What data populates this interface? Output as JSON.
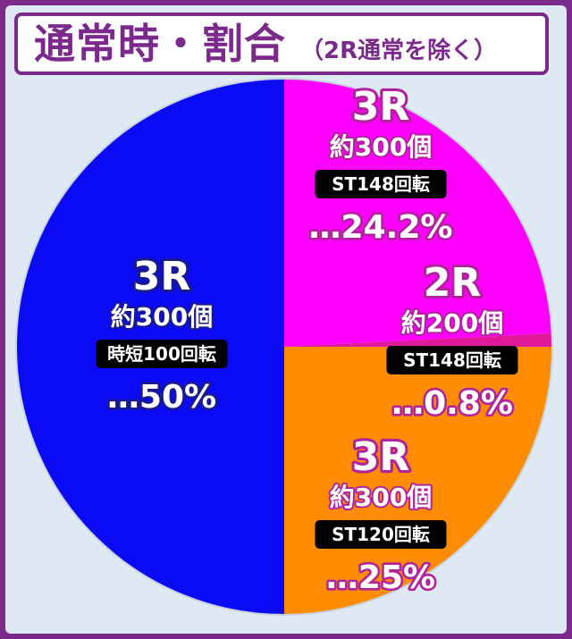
{
  "colors": {
    "frame": "#7b2a8c",
    "background": "#dfe9f3",
    "title_text": "#7b2a8c",
    "label_fill": "#ffffff",
    "pill_bg": "#000000"
  },
  "title": {
    "main": "通常時・割合",
    "sub": "（2R通常を除く）"
  },
  "chart_data": {
    "type": "pie",
    "title": "通常時・割合",
    "subtitle": "（2R通常を除く）",
    "slices": [
      {
        "round": "3R",
        "payout": "約300個",
        "mode": "ST148回転",
        "percent_text": "…24.2%",
        "value": 24.2,
        "color": "#ff00ff",
        "outline": "#b0239c"
      },
      {
        "round": "2R",
        "payout": "約200個",
        "mode": "ST148回転",
        "percent_text": "…0.8%",
        "value": 0.8,
        "color": "#e0189a",
        "outline": "#b0239c"
      },
      {
        "round": "3R",
        "payout": "約300個",
        "mode": "ST120回転",
        "percent_text": "…25%",
        "value": 25,
        "color": "#ff8c00",
        "outline": "#b0239c"
      },
      {
        "round": "3R",
        "payout": "約300個",
        "mode": "時短100回転",
        "percent_text": "…50%",
        "value": 50,
        "color": "#0a0af5",
        "outline": "#1a1a8c"
      }
    ]
  }
}
